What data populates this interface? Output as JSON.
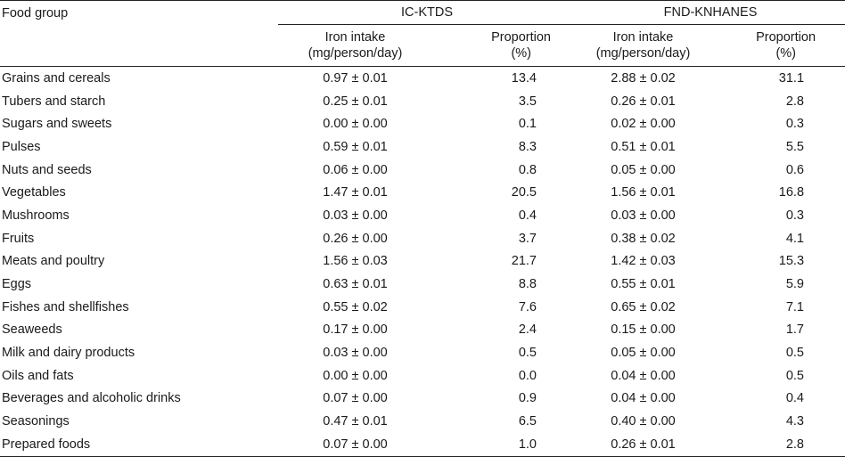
{
  "header": {
    "food_group": "Food group",
    "group1": "IC-KTDS",
    "group2": "FND-KNHANES",
    "iron_intake_line1": "Iron intake",
    "iron_intake_line2": "(mg/person/day)",
    "proportion_line1": "Proportion",
    "proportion_line2": "(%)"
  },
  "rows": [
    {
      "group": "Grains and cereals",
      "ic_iron": "0.97 ± 0.01",
      "ic_prop": "13.4",
      "fnd_iron": "2.88 ± 0.02",
      "fnd_prop": "31.1"
    },
    {
      "group": "Tubers and starch",
      "ic_iron": "0.25 ± 0.01",
      "ic_prop": "3.5",
      "fnd_iron": "0.26 ± 0.01",
      "fnd_prop": "2.8"
    },
    {
      "group": "Sugars and sweets",
      "ic_iron": "0.00 ± 0.00",
      "ic_prop": "0.1",
      "fnd_iron": "0.02 ± 0.00",
      "fnd_prop": "0.3"
    },
    {
      "group": "Pulses",
      "ic_iron": "0.59 ± 0.01",
      "ic_prop": "8.3",
      "fnd_iron": "0.51 ± 0.01",
      "fnd_prop": "5.5"
    },
    {
      "group": "Nuts and seeds",
      "ic_iron": "0.06 ± 0.00",
      "ic_prop": "0.8",
      "fnd_iron": "0.05 ± 0.00",
      "fnd_prop": "0.6"
    },
    {
      "group": "Vegetables",
      "ic_iron": "1.47 ± 0.01",
      "ic_prop": "20.5",
      "fnd_iron": "1.56 ± 0.01",
      "fnd_prop": "16.8"
    },
    {
      "group": "Mushrooms",
      "ic_iron": "0.03 ± 0.00",
      "ic_prop": "0.4",
      "fnd_iron": "0.03 ± 0.00",
      "fnd_prop": "0.3"
    },
    {
      "group": "Fruits",
      "ic_iron": "0.26 ± 0.00",
      "ic_prop": "3.7",
      "fnd_iron": "0.38 ± 0.02",
      "fnd_prop": "4.1"
    },
    {
      "group": "Meats and poultry",
      "ic_iron": "1.56 ± 0.03",
      "ic_prop": "21.7",
      "fnd_iron": "1.42 ± 0.03",
      "fnd_prop": "15.3"
    },
    {
      "group": "Eggs",
      "ic_iron": "0.63 ± 0.01",
      "ic_prop": "8.8",
      "fnd_iron": "0.55 ± 0.01",
      "fnd_prop": "5.9"
    },
    {
      "group": "Fishes and shellfishes",
      "ic_iron": "0.55 ± 0.02",
      "ic_prop": "7.6",
      "fnd_iron": "0.65 ± 0.02",
      "fnd_prop": "7.1"
    },
    {
      "group": "Seaweeds",
      "ic_iron": "0.17 ± 0.00",
      "ic_prop": "2.4",
      "fnd_iron": "0.15 ± 0.00",
      "fnd_prop": "1.7"
    },
    {
      "group": "Milk and dairy products",
      "ic_iron": "0.03 ± 0.00",
      "ic_prop": "0.5",
      "fnd_iron": "0.05 ± 0.00",
      "fnd_prop": "0.5"
    },
    {
      "group": "Oils and fats",
      "ic_iron": "0.00 ± 0.00",
      "ic_prop": "0.0",
      "fnd_iron": "0.04 ± 0.00",
      "fnd_prop": "0.5"
    },
    {
      "group": "Beverages and alcoholic drinks",
      "ic_iron": "0.07 ± 0.00",
      "ic_prop": "0.9",
      "fnd_iron": "0.04 ± 0.00",
      "fnd_prop": "0.4"
    },
    {
      "group": "Seasonings",
      "ic_iron": "0.47 ± 0.01",
      "ic_prop": "6.5",
      "fnd_iron": "0.40 ± 0.00",
      "fnd_prop": "4.3"
    },
    {
      "group": "Prepared foods",
      "ic_iron": "0.07 ± 0.00",
      "ic_prop": "1.0",
      "fnd_iron": "0.26 ± 0.01",
      "fnd_prop": "2.8"
    }
  ]
}
